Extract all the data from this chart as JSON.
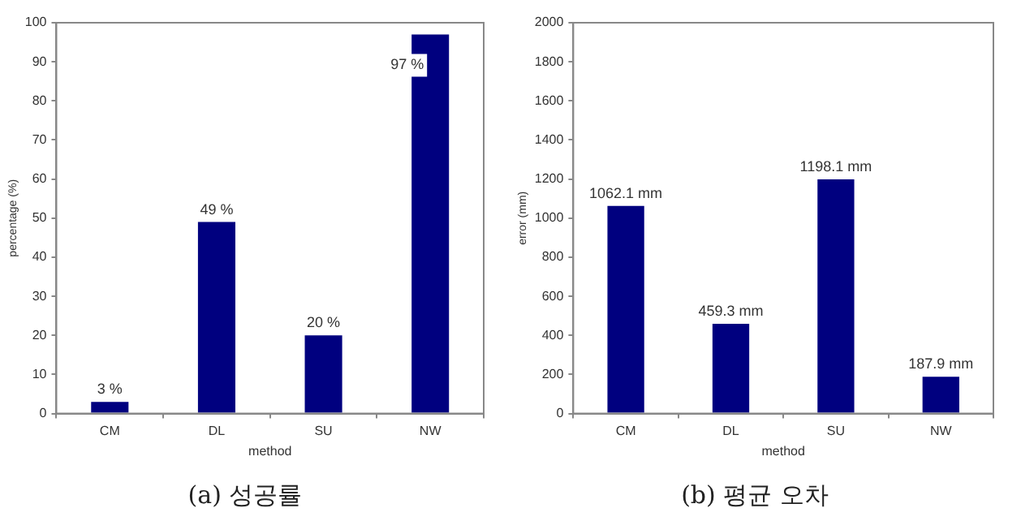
{
  "chart_data": [
    {
      "type": "bar",
      "title": "(a) 성공률",
      "xlabel": "method",
      "ylabel": "percentage (%)",
      "categories": [
        "CM",
        "DL",
        "SU",
        "NW"
      ],
      "values": [
        3,
        49,
        20,
        97
      ],
      "color": "#00007f",
      "value_labels": [
        "3 %",
        "49 %",
        "20 %",
        "97 %"
      ],
      "ylim": [
        0,
        100
      ],
      "yticks": [
        0,
        10,
        20,
        30,
        40,
        50,
        60,
        70,
        80,
        90,
        100
      ],
      "grid": false,
      "legend": false
    },
    {
      "type": "bar",
      "title": "(b) 평균 오차",
      "xlabel": "method",
      "ylabel": "error (mm)",
      "categories": [
        "CM",
        "DL",
        "SU",
        "NW"
      ],
      "values": [
        1062.1,
        459.3,
        1198.1,
        187.9
      ],
      "color": "#00007f",
      "value_labels": [
        "1062.1 mm",
        "459.3 mm",
        "1198.1 mm",
        "187.9 mm"
      ],
      "ylim": [
        0,
        2000
      ],
      "yticks": [
        0,
        200,
        400,
        600,
        800,
        1000,
        1200,
        1400,
        1600,
        1800,
        2000
      ],
      "grid": false,
      "legend": false
    }
  ]
}
